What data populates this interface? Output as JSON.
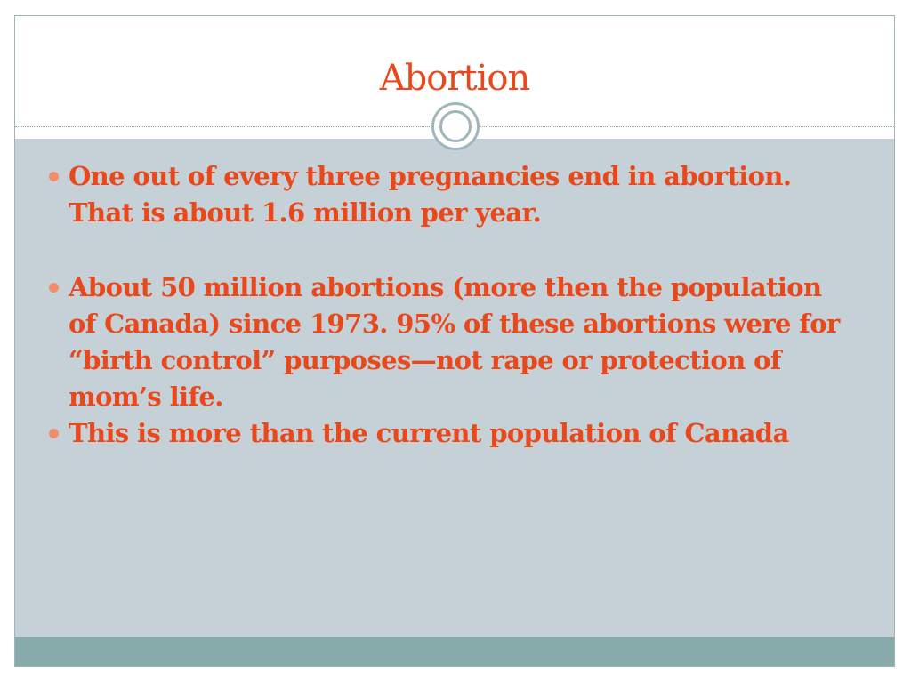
{
  "slide": {
    "title": "Abortion",
    "bullets": [
      {
        "text": "One out of every three pregnancies end in abortion.  That is about 1.6 million per year."
      },
      {
        "text": "About 50 million abortions (more then the population of Canada) since 1973.  95% of these abortions were for “birth control” purposes—not rape or protection of mom’s life."
      },
      {
        "text": "This is more than the current population of Canada"
      }
    ]
  },
  "theme": {
    "title_color": "#e8481a",
    "body_color": "#e8481a",
    "content_background": "#c5d0d7",
    "footer_band": "#87abab",
    "bullet_color": "#f28d6c",
    "divider_icon": "ring-icon"
  }
}
